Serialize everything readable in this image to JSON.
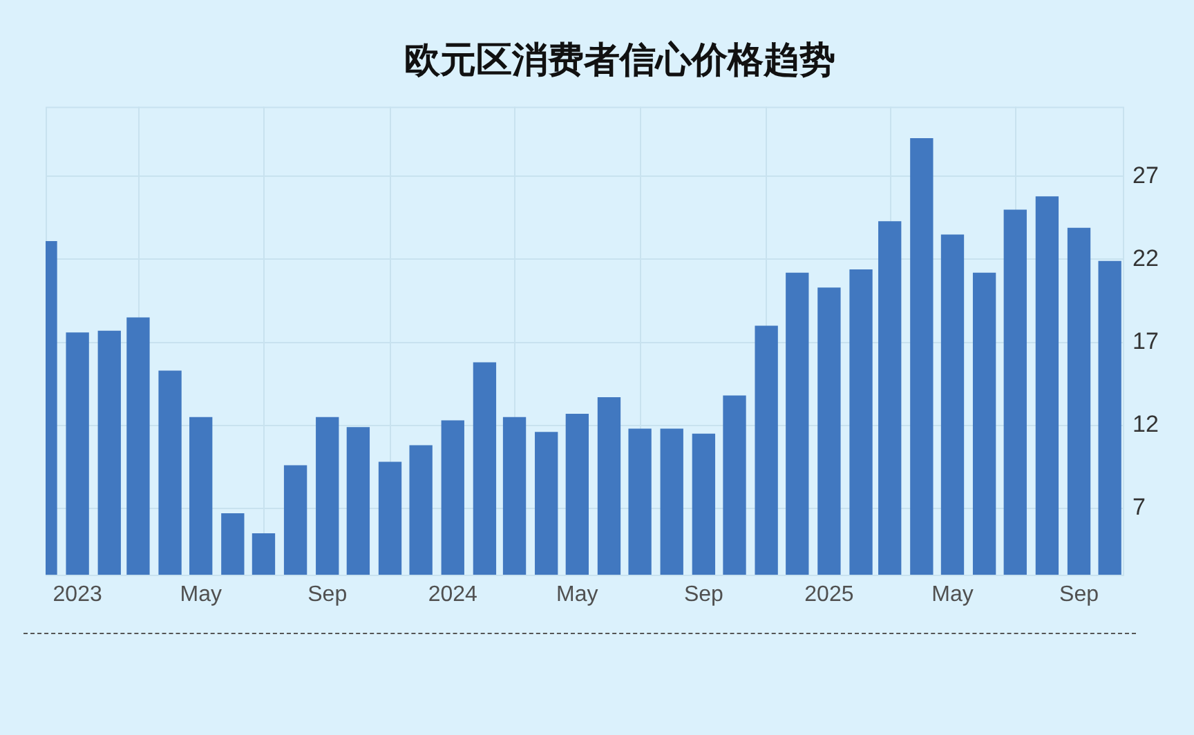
{
  "chart_data": {
    "type": "bar",
    "title": "欧元区消费者信心价格趋势",
    "x": [
      "2022-12",
      "2023-01",
      "2023-02",
      "2023-03",
      "2023-04",
      "2023-05",
      "2023-06",
      "2023-07",
      "2023-08",
      "2023-09",
      "2023-10",
      "2023-11",
      "2023-12",
      "2024-01",
      "2024-02",
      "2024-03",
      "2024-04",
      "2024-05",
      "2024-06",
      "2024-07",
      "2024-08",
      "2024-09",
      "2024-10",
      "2024-11",
      "2024-12",
      "2025-01",
      "2025-02",
      "2025-03",
      "2025-04",
      "2025-05",
      "2025-06",
      "2025-07",
      "2025-08",
      "2025-09",
      "2025-10"
    ],
    "values": [
      23.1,
      17.6,
      17.7,
      18.5,
      15.3,
      12.5,
      6.7,
      5.5,
      9.6,
      12.5,
      11.9,
      9.8,
      10.8,
      12.3,
      15.8,
      12.5,
      11.6,
      12.7,
      13.7,
      11.8,
      11.8,
      11.5,
      13.8,
      18.0,
      21.2,
      20.3,
      21.4,
      24.3,
      29.3,
      23.5,
      21.2,
      25.0,
      25.8,
      23.9,
      21.9
    ],
    "color": "#4178c0",
    "xlim": [
      "2022-12-01",
      "2025-10-15"
    ],
    "xticks": [
      {
        "value": "2023-01",
        "label": "2023"
      },
      {
        "value": "2023-05",
        "label": "May"
      },
      {
        "value": "2023-09",
        "label": "Sep"
      },
      {
        "value": "2024-01",
        "label": "2024"
      },
      {
        "value": "2024-05",
        "label": "May"
      },
      {
        "value": "2024-09",
        "label": "Sep"
      },
      {
        "value": "2025-01",
        "label": "2025"
      },
      {
        "value": "2025-05",
        "label": "May"
      },
      {
        "value": "2025-09",
        "label": "Sep"
      }
    ],
    "ylim": [
      3,
      31.2
    ],
    "yticks": [
      7,
      12,
      17,
      22,
      27
    ],
    "grid": true
  }
}
